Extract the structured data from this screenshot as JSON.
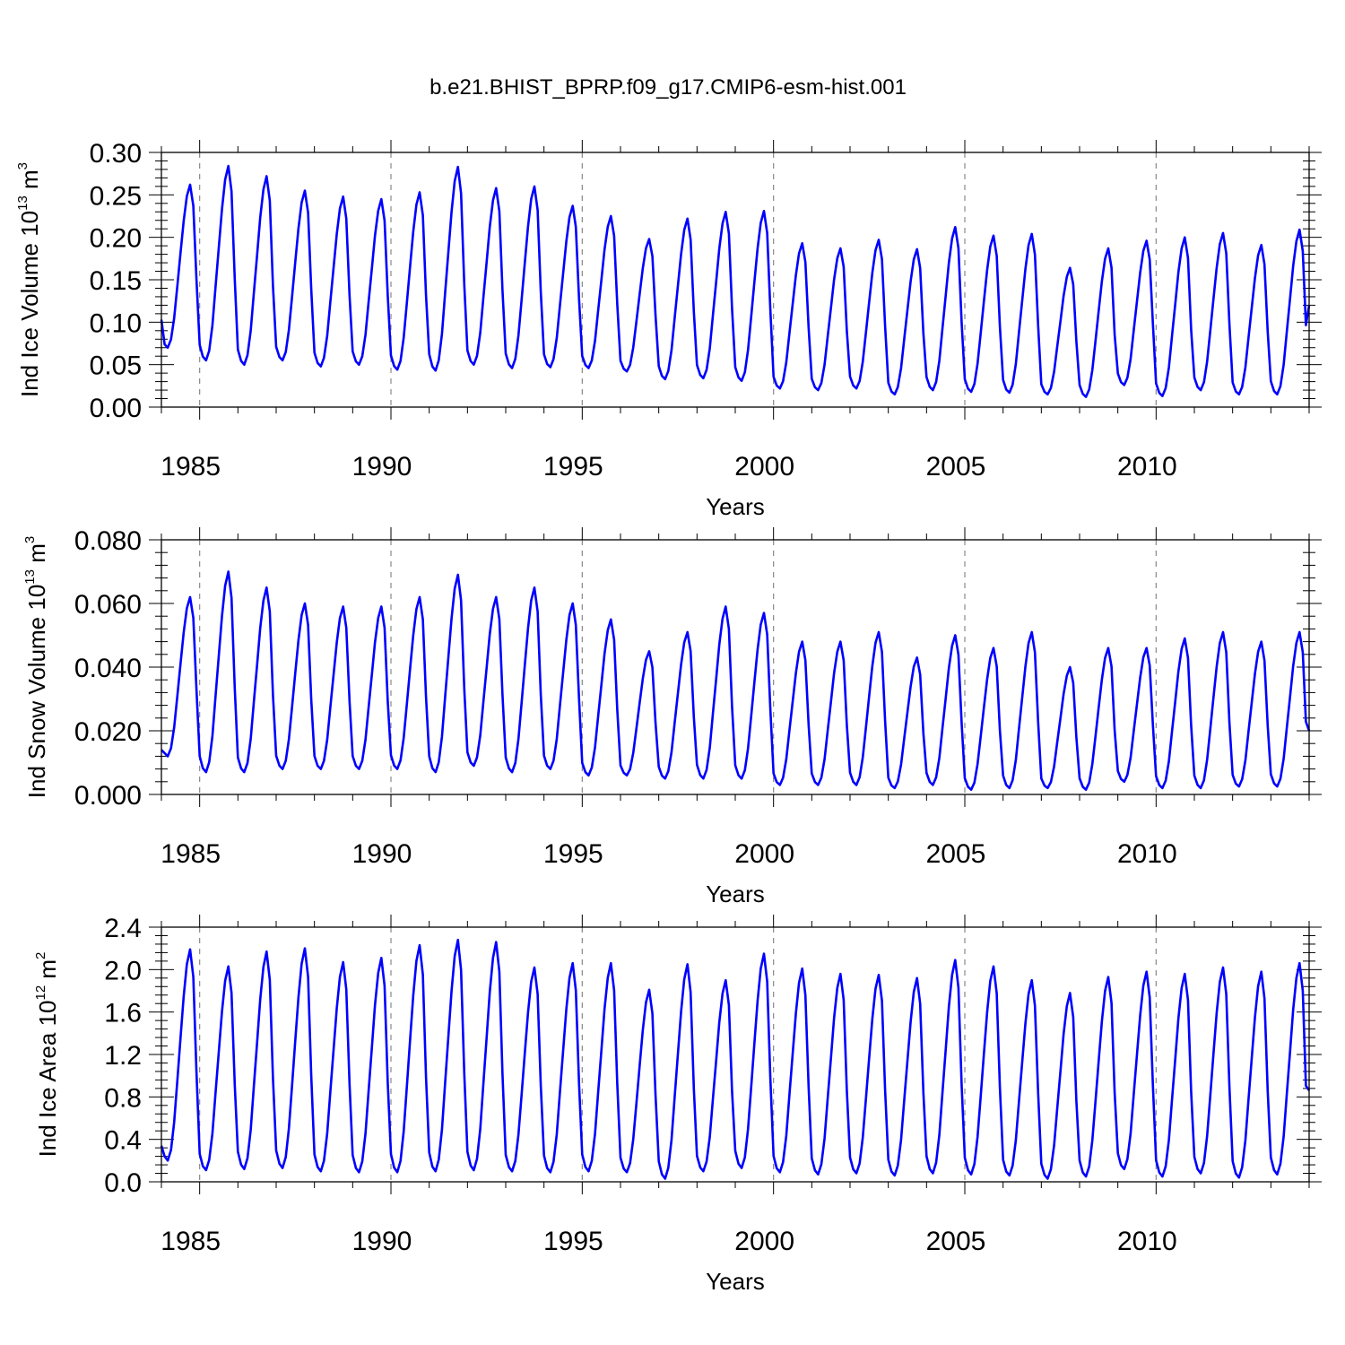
{
  "figure_title": "b.e21.BHIST_BPRP.f09_g17.CMIP6-esm-hist.001",
  "chart_data": [
    {
      "type": "line",
      "name": "ice-volume",
      "ylabel": {
        "prefix": "Ind Ice Volume 10",
        "exp": "13",
        "unit": " m",
        "unit_exp": "3"
      },
      "xlabel": "Years",
      "xlim": [
        1984.0,
        2014.0
      ],
      "ylim": [
        0.0,
        0.3
      ],
      "yticks": [
        "0.00",
        "0.05",
        "0.10",
        "0.15",
        "0.20",
        "0.25",
        "0.30"
      ],
      "xticks": [
        "1985",
        "1990",
        "1995",
        "2000",
        "2005",
        "2010"
      ],
      "grid": "dashed vertical lines at 5-year ticks",
      "line_color": "#0000ff",
      "monthly_start": 1984.0,
      "years": [
        1984,
        1985,
        1986,
        1987,
        1988,
        1989,
        1990,
        1991,
        1992,
        1993,
        1994,
        1995,
        1996,
        1997,
        1998,
        1999,
        2000,
        2001,
        2002,
        2003,
        2004,
        2005,
        2006,
        2007,
        2008,
        2009,
        2010,
        2011,
        2012,
        2013
      ],
      "annual_max": [
        0.262,
        0.284,
        0.272,
        0.255,
        0.248,
        0.245,
        0.253,
        0.283,
        0.258,
        0.26,
        0.237,
        0.225,
        0.198,
        0.222,
        0.23,
        0.231,
        0.193,
        0.187,
        0.197,
        0.186,
        0.212,
        0.202,
        0.204,
        0.164,
        0.187,
        0.196,
        0.2,
        0.205,
        0.191,
        0.209
      ],
      "annual_min": [
        0.07,
        0.055,
        0.05,
        0.055,
        0.048,
        0.05,
        0.044,
        0.043,
        0.05,
        0.046,
        0.047,
        0.046,
        0.042,
        0.033,
        0.034,
        0.031,
        0.022,
        0.02,
        0.022,
        0.015,
        0.02,
        0.018,
        0.017,
        0.015,
        0.012,
        0.026,
        0.013,
        0.02,
        0.015,
        0.015
      ],
      "first_value": 0.103,
      "last_value": 0.12
    },
    {
      "type": "line",
      "name": "snow-volume",
      "ylabel": {
        "prefix": "Ind Snow Volume 10",
        "exp": "13",
        "unit": " m",
        "unit_exp": "3"
      },
      "xlabel": "Years",
      "xlim": [
        1984.0,
        2014.0
      ],
      "ylim": [
        0.0,
        0.08
      ],
      "yticks": [
        "0.000",
        "0.020",
        "0.040",
        "0.060",
        "0.080"
      ],
      "xticks": [
        "1985",
        "1990",
        "1995",
        "2000",
        "2005",
        "2010"
      ],
      "grid": "dashed vertical lines at 5-year ticks",
      "line_color": "#0000ff",
      "monthly_start": 1984.0,
      "years": [
        1984,
        1985,
        1986,
        1987,
        1988,
        1989,
        1990,
        1991,
        1992,
        1993,
        1994,
        1995,
        1996,
        1997,
        1998,
        1999,
        2000,
        2001,
        2002,
        2003,
        2004,
        2005,
        2006,
        2007,
        2008,
        2009,
        2010,
        2011,
        2012,
        2013
      ],
      "annual_max": [
        0.062,
        0.07,
        0.065,
        0.06,
        0.059,
        0.059,
        0.062,
        0.069,
        0.062,
        0.065,
        0.06,
        0.055,
        0.045,
        0.051,
        0.059,
        0.057,
        0.048,
        0.048,
        0.051,
        0.043,
        0.05,
        0.046,
        0.051,
        0.04,
        0.046,
        0.046,
        0.049,
        0.051,
        0.048,
        0.051
      ],
      "annual_min": [
        0.012,
        0.007,
        0.007,
        0.008,
        0.008,
        0.008,
        0.008,
        0.007,
        0.009,
        0.007,
        0.008,
        0.006,
        0.006,
        0.005,
        0.005,
        0.005,
        0.003,
        0.003,
        0.003,
        0.002,
        0.003,
        0.0015,
        0.002,
        0.002,
        0.0015,
        0.004,
        0.002,
        0.002,
        0.0025,
        0.0025
      ],
      "first_value": 0.014,
      "last_value": 0.02
    },
    {
      "type": "line",
      "name": "ice-area",
      "ylabel": {
        "prefix": "Ind Ice Area 10",
        "exp": "12",
        "unit": " m",
        "unit_exp": "2"
      },
      "xlabel": "Years",
      "xlim": [
        1984.0,
        2014.0
      ],
      "ylim": [
        0.0,
        2.4
      ],
      "yticks": [
        "0.0",
        "0.4",
        "0.8",
        "1.2",
        "1.6",
        "2.0",
        "2.4"
      ],
      "xticks": [
        "1985",
        "1990",
        "1995",
        "2000",
        "2005",
        "2010"
      ],
      "grid": "dashed vertical lines at 5-year ticks",
      "line_color": "#0000ff",
      "monthly_start": 1984.0,
      "years": [
        1984,
        1985,
        1986,
        1987,
        1988,
        1989,
        1990,
        1991,
        1992,
        1993,
        1994,
        1995,
        1996,
        1997,
        1998,
        1999,
        2000,
        2001,
        2002,
        2003,
        2004,
        2005,
        2006,
        2007,
        2008,
        2009,
        2010,
        2011,
        2012,
        2013
      ],
      "annual_max": [
        2.19,
        2.03,
        2.17,
        2.2,
        2.07,
        2.11,
        2.23,
        2.28,
        2.26,
        2.02,
        2.06,
        2.06,
        1.81,
        2.05,
        1.9,
        2.15,
        2.01,
        1.96,
        1.95,
        1.92,
        2.09,
        2.03,
        1.9,
        1.78,
        1.93,
        1.98,
        1.96,
        2.02,
        1.98,
        2.06
      ],
      "annual_min": [
        0.2,
        0.11,
        0.12,
        0.13,
        0.1,
        0.09,
        0.09,
        0.1,
        0.11,
        0.1,
        0.09,
        0.1,
        0.09,
        0.03,
        0.1,
        0.13,
        0.09,
        0.07,
        0.08,
        0.06,
        0.08,
        0.07,
        0.06,
        0.03,
        0.05,
        0.12,
        0.05,
        0.08,
        0.04,
        0.07
      ],
      "first_value": 0.34,
      "last_value": 0.86
    }
  ]
}
